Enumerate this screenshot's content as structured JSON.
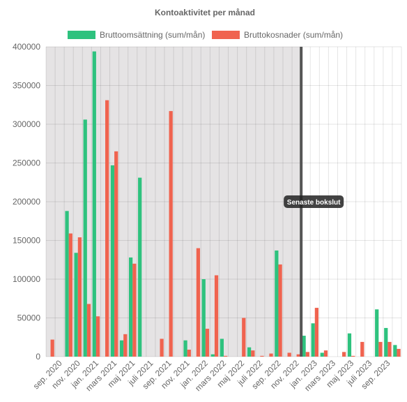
{
  "chart_data": {
    "type": "bar",
    "title": "Kontoaktivitet per månad",
    "categories": [
      "aug. 2020",
      "sep. 2020",
      "okt. 2020",
      "nov. 2020",
      "dec. 2020",
      "jan. 2021",
      "feb. 2021",
      "mars 2021",
      "apr. 2021",
      "maj 2021",
      "juni 2021",
      "juli 2021",
      "aug. 2021",
      "sep. 2021",
      "okt. 2021",
      "nov. 2021",
      "dec. 2021",
      "jan. 2022",
      "feb. 2022",
      "mars 2022",
      "apr. 2022",
      "maj 2022",
      "juni 2022",
      "juli 2022",
      "aug. 2022",
      "sep. 2022",
      "okt. 2022",
      "nov. 2022",
      "dec. 2022",
      "jan. 2023",
      "feb. 2023",
      "mars 2023",
      "apr. 2023",
      "maj 2023",
      "juni 2023",
      "juli 2023",
      "aug. 2023",
      "sep. 2023",
      "okt. 2023"
    ],
    "tick_labels": [
      "sep. 2020",
      "nov. 2020",
      "jan. 2021",
      "mars 2021",
      "maj 2021",
      "juli 2021",
      "sep. 2021",
      "nov. 2021",
      "jan. 2022",
      "mars 2022",
      "maj 2022",
      "juli 2022",
      "sep. 2022",
      "nov. 2022",
      "jan. 2023",
      "mars 2023",
      "maj 2023",
      "juli 2023",
      "sep. 2023"
    ],
    "series": [
      {
        "name": "Bruttoomsättning (sum/mån)",
        "color": "#2ec27e",
        "values": [
          0,
          0,
          188000,
          134000,
          306000,
          394000,
          0,
          247000,
          21000,
          128000,
          231000,
          0,
          0,
          0,
          0,
          21000,
          0,
          100000,
          3000,
          23000,
          0,
          0,
          12000,
          0,
          0,
          137000,
          0,
          0,
          27000,
          43000,
          5000,
          0,
          0,
          30000,
          0,
          0,
          61000,
          37000,
          15000
        ]
      },
      {
        "name": "Bruttokosnader (sum/mån)",
        "color": "#f0634f",
        "values": [
          22000,
          0,
          159000,
          154000,
          68000,
          52000,
          331000,
          265000,
          29000,
          120000,
          0,
          0,
          23000,
          317000,
          0,
          9000,
          140000,
          36000,
          105000,
          1000,
          0,
          50000,
          8000,
          1000,
          4000,
          119000,
          5000,
          3000,
          6000,
          63000,
          8000,
          0,
          6000,
          1000,
          19000,
          0,
          19000,
          19000,
          10000
        ]
      }
    ],
    "xlabel": "",
    "ylabel": "",
    "ylim": [
      0,
      400000
    ],
    "yticks": [
      0,
      50000,
      100000,
      150000,
      200000,
      250000,
      300000,
      350000,
      400000
    ],
    "grid": true,
    "legend": "top",
    "annotation": {
      "label": "Senaste bokslut",
      "between": [
        "nov. 2022",
        "dec. 2022"
      ]
    },
    "shaded_region": {
      "from": "aug. 2020",
      "to": "nov. 2022",
      "color": "#e5e3e4"
    }
  }
}
